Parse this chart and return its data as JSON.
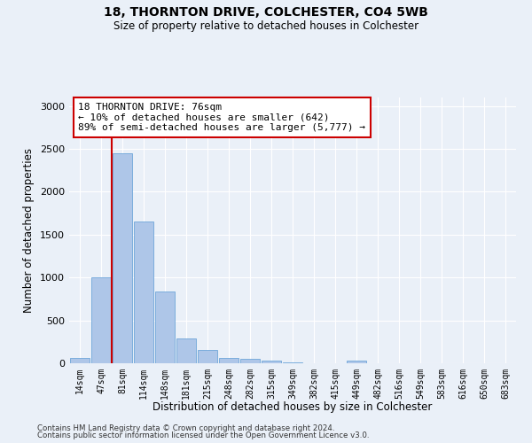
{
  "title1": "18, THORNTON DRIVE, COLCHESTER, CO4 5WB",
  "title2": "Size of property relative to detached houses in Colchester",
  "xlabel": "Distribution of detached houses by size in Colchester",
  "ylabel": "Number of detached properties",
  "categories": [
    "14sqm",
    "47sqm",
    "81sqm",
    "114sqm",
    "148sqm",
    "181sqm",
    "215sqm",
    "248sqm",
    "282sqm",
    "315sqm",
    "349sqm",
    "382sqm",
    "415sqm",
    "449sqm",
    "482sqm",
    "516sqm",
    "549sqm",
    "583sqm",
    "616sqm",
    "650sqm",
    "683sqm"
  ],
  "bar_heights": [
    60,
    1000,
    2450,
    1650,
    840,
    290,
    150,
    60,
    50,
    30,
    15,
    5,
    0,
    35,
    0,
    0,
    0,
    0,
    0,
    0,
    0
  ],
  "bar_color": "#aec6e8",
  "bar_edge_color": "#5b9bd5",
  "vline_x": 1.5,
  "vline_color": "#cc0000",
  "annotation_text": "18 THORNTON DRIVE: 76sqm\n← 10% of detached houses are smaller (642)\n89% of semi-detached houses are larger (5,777) →",
  "annotation_box_color": "#ffffff",
  "annotation_box_edge": "#cc0000",
  "ylim": [
    0,
    3100
  ],
  "yticks": [
    0,
    500,
    1000,
    1500,
    2000,
    2500,
    3000
  ],
  "footer1": "Contains HM Land Registry data © Crown copyright and database right 2024.",
  "footer2": "Contains public sector information licensed under the Open Government Licence v3.0.",
  "bg_color": "#eaf0f8",
  "plot_bg_color": "#eaf0f8"
}
